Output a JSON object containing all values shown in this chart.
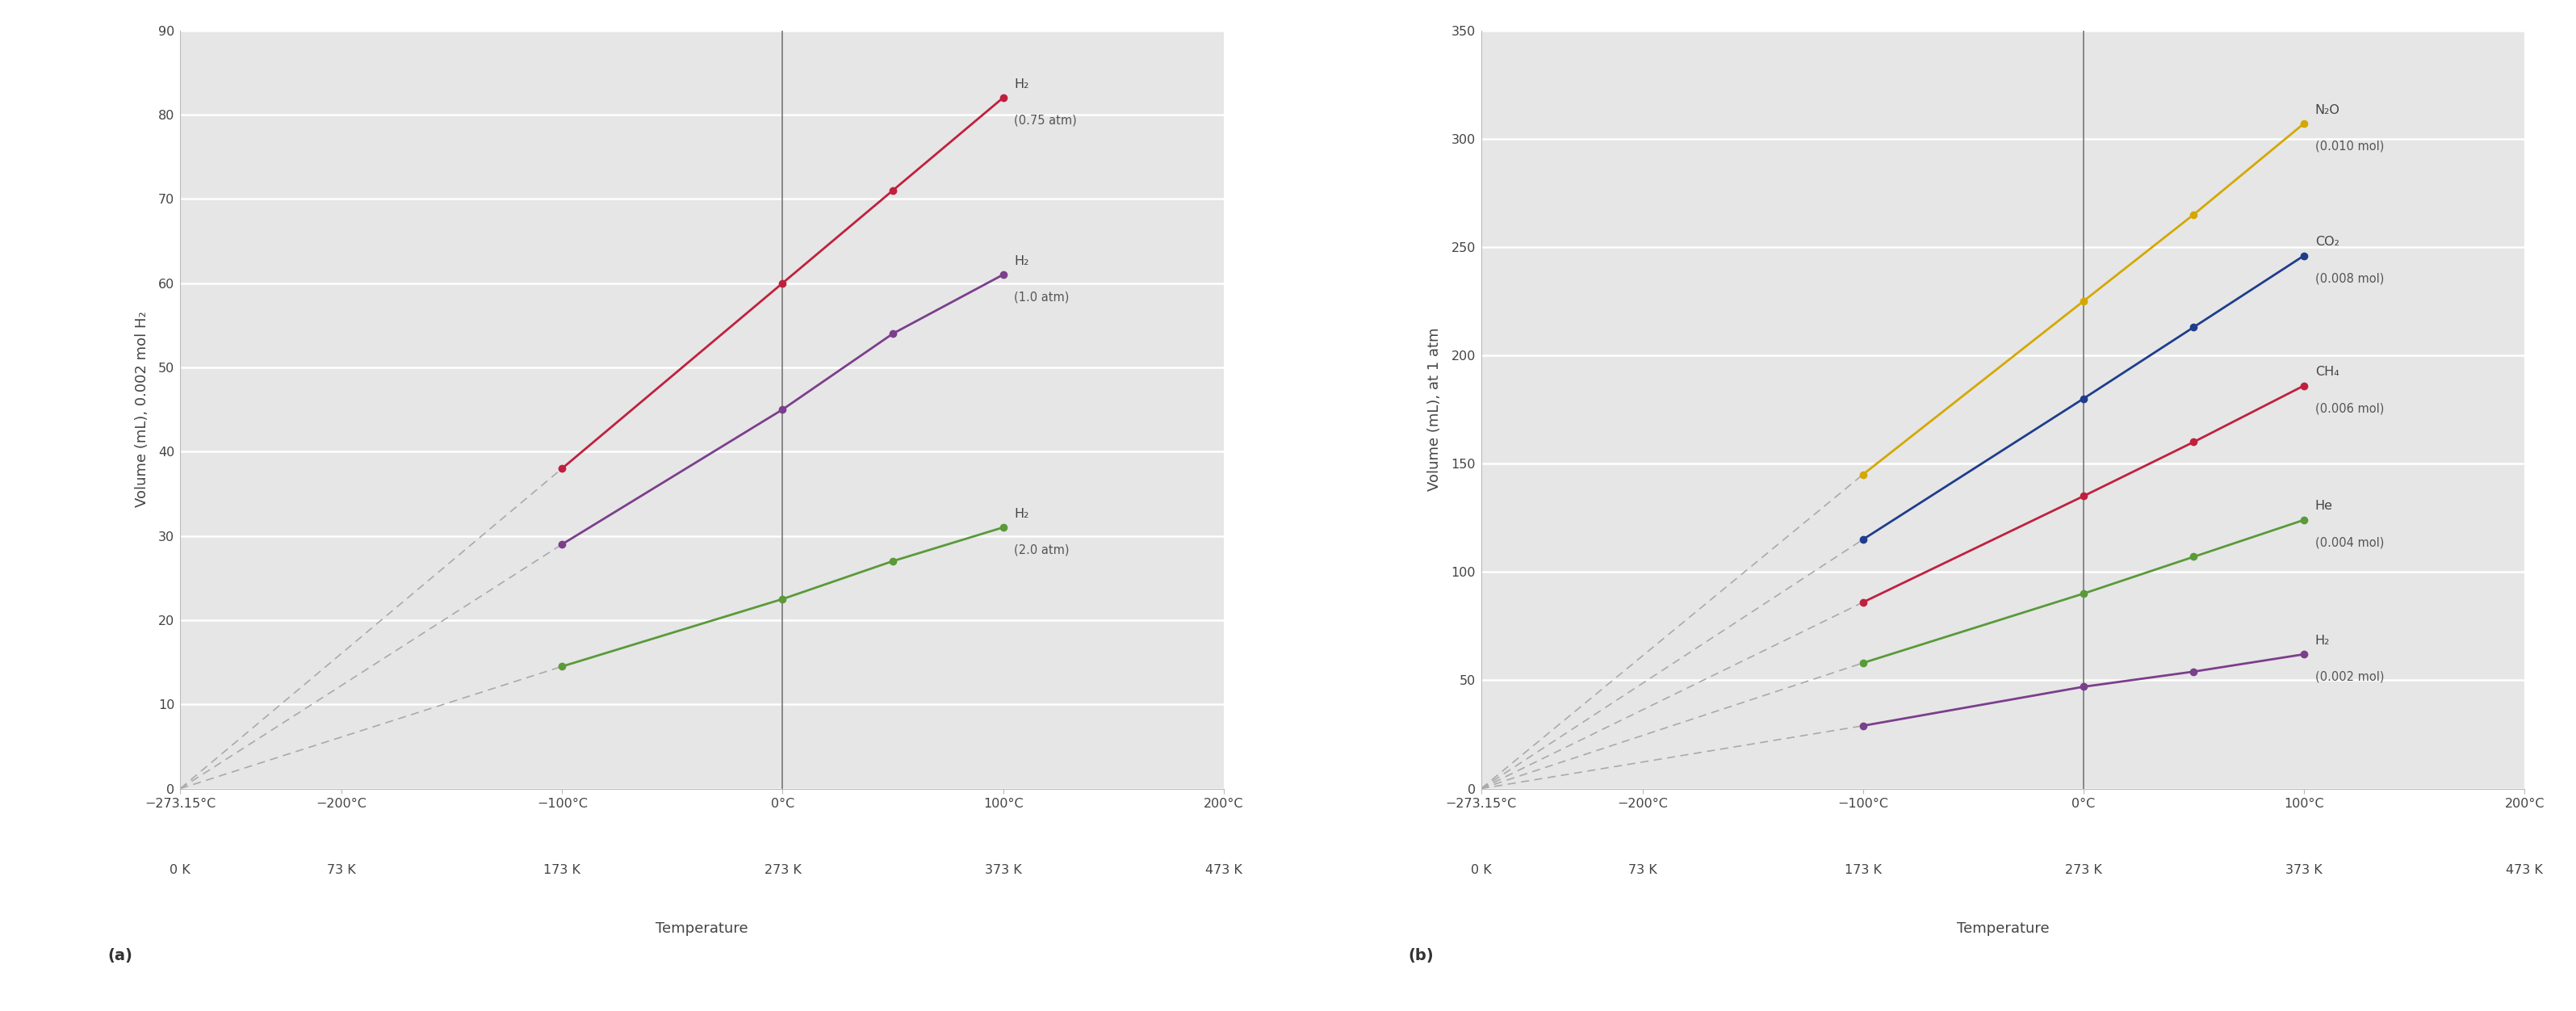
{
  "panel_a": {
    "ylabel": "Volume (mL), 0.002 mol H₂",
    "ylim": [
      0,
      90
    ],
    "yticks": [
      0,
      10,
      20,
      30,
      40,
      50,
      60,
      70,
      80,
      90
    ],
    "series": [
      {
        "label": "H₂",
        "sublabel": "(0.75 atm)",
        "color": "#c0203e",
        "temps": [
          -100,
          0,
          50,
          100
        ],
        "volumes": [
          38,
          60,
          71,
          82
        ]
      },
      {
        "label": "H₂",
        "sublabel": "(1.0 atm)",
        "color": "#7b3f8c",
        "temps": [
          -100,
          0,
          50,
          100
        ],
        "volumes": [
          29,
          45,
          54,
          61
        ]
      },
      {
        "label": "H₂",
        "sublabel": "(2.0 atm)",
        "color": "#5a9a3a",
        "temps": [
          -100,
          0,
          50,
          100
        ],
        "volumes": [
          14.5,
          22.5,
          27,
          31
        ]
      }
    ],
    "panel_label": "(a)"
  },
  "panel_b": {
    "ylabel": "Volume (mL), at 1 atm",
    "ylim": [
      0,
      350
    ],
    "yticks": [
      0,
      50,
      100,
      150,
      200,
      250,
      300,
      350
    ],
    "series": [
      {
        "label": "N₂O",
        "sublabel": "(0.010 mol)",
        "color": "#d4a800",
        "temps": [
          -100,
          0,
          50,
          100
        ],
        "volumes": [
          145,
          225,
          265,
          307
        ]
      },
      {
        "label": "CO₂",
        "sublabel": "(0.008 mol)",
        "color": "#1f3d8c",
        "temps": [
          -100,
          0,
          50,
          100
        ],
        "volumes": [
          115,
          180,
          213,
          246
        ]
      },
      {
        "label": "CH₄",
        "sublabel": "(0.006 mol)",
        "color": "#c0203e",
        "temps": [
          -100,
          0,
          50,
          100
        ],
        "volumes": [
          86,
          135,
          160,
          186
        ]
      },
      {
        "label": "He",
        "sublabel": "(0.004 mol)",
        "color": "#5a9a3a",
        "temps": [
          -100,
          0,
          50,
          100
        ],
        "volumes": [
          58,
          90,
          107,
          124
        ]
      },
      {
        "label": "H₂",
        "sublabel": "(0.002 mol)",
        "color": "#7b3f8c",
        "temps": [
          -100,
          0,
          50,
          100
        ],
        "volumes": [
          29,
          47,
          54,
          62
        ]
      }
    ],
    "panel_label": "(b)"
  },
  "x_celsius_ticks": [
    -273.15,
    -200,
    -100,
    0,
    100,
    200
  ],
  "x_celsius_labels": [
    "−273.15°C",
    "−200°C",
    "−100°C",
    "0°C",
    "100°C",
    "200°C"
  ],
  "x_kelvin_labels": [
    "0 K",
    "73 K",
    "173 K",
    "273 K",
    "373 K",
    "473 K"
  ],
  "xlim": [
    -273.15,
    200
  ],
  "bg_color": "#e6e6e6",
  "grid_color": "#ffffff",
  "dashed_color": "#aaaaaa",
  "tick_fontsize": 11.5,
  "label_fontsize": 13,
  "annotation_fontsize": 11.5,
  "panel_label_fontsize": 14
}
